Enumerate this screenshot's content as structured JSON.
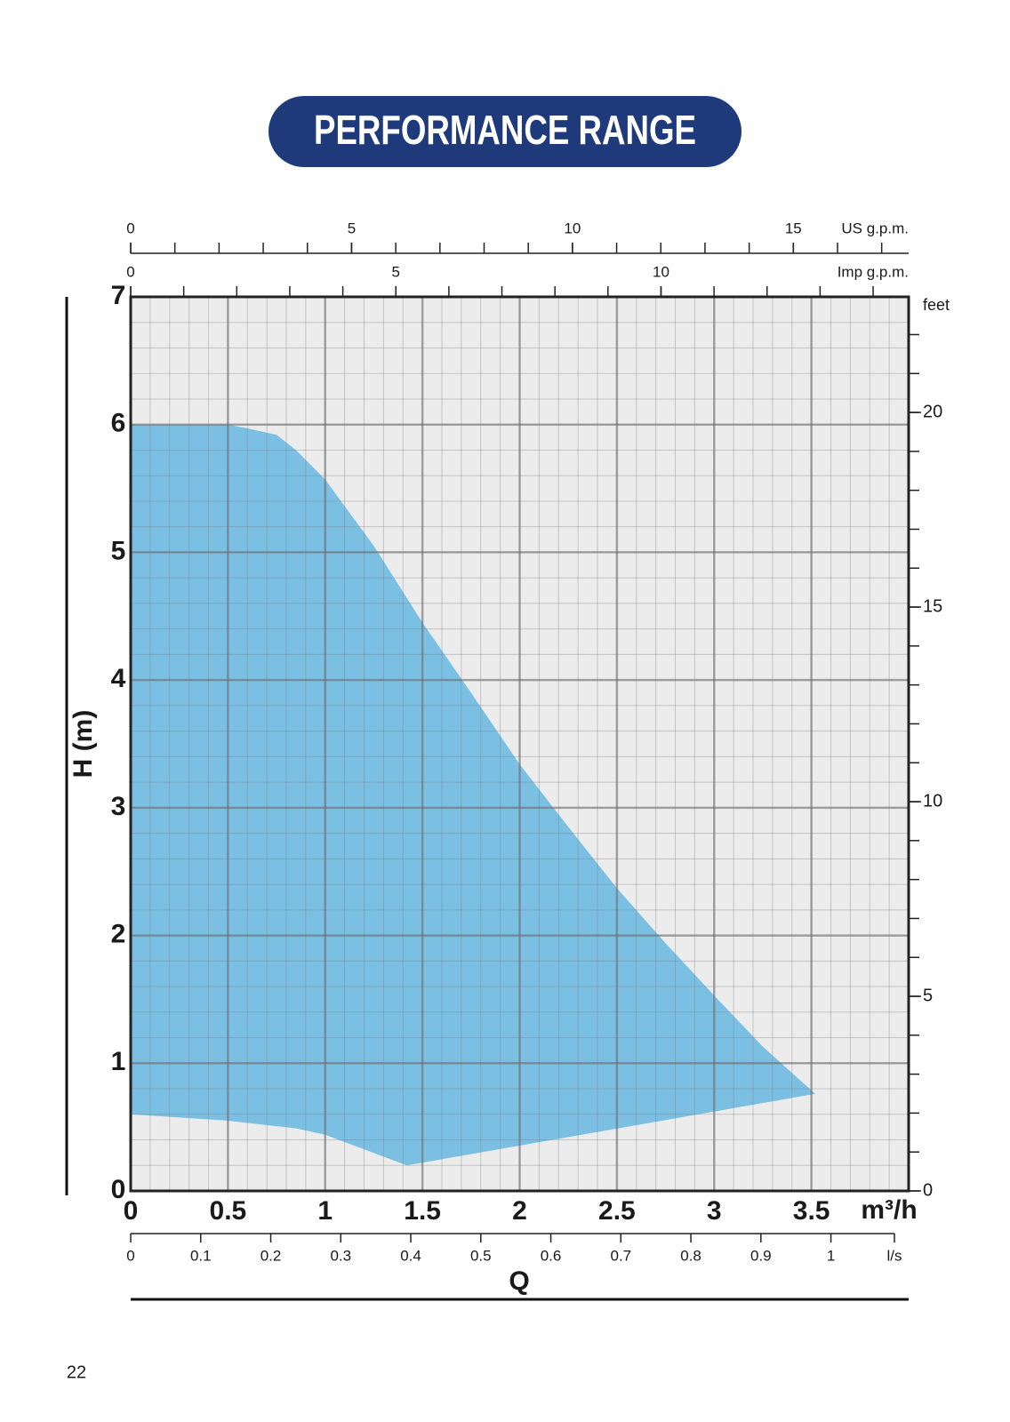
{
  "page_number": "22",
  "chart_data": {
    "type": "area",
    "title": "PERFORMANCE RANGE",
    "y_label": "H (m)",
    "x_label": "Q",
    "x_unit": "m³/h",
    "color": "#7bc0e3",
    "x": [
      0,
      0.25,
      0.5,
      0.6,
      0.75,
      0.85,
      1,
      1.25,
      1.5,
      1.75,
      2,
      2.25,
      2.5,
      2.75,
      3,
      3.25,
      3.52,
      1.42,
      1,
      0.85,
      0.5,
      0
    ],
    "values": [
      6,
      6,
      6,
      5.97,
      5.92,
      5.8,
      5.57,
      5.05,
      4.45,
      3.9,
      3.34,
      2.85,
      2.37,
      1.94,
      1.53,
      1.13,
      0.76,
      0.2,
      0.44,
      0.49,
      0.55,
      0.6
    ],
    "xlim": [
      0,
      4
    ],
    "ylim": [
      0,
      7
    ],
    "xticks": [
      0,
      0.5,
      1,
      1.5,
      2,
      2.5,
      3,
      3.5
    ],
    "yticks": [
      0,
      1,
      2,
      3,
      4,
      5,
      6,
      7
    ],
    "grid": true,
    "minor_grid": {
      "x": 0.1,
      "y": 0.2
    },
    "top_axes": [
      {
        "label": "US g.p.m.",
        "lim": [
          0,
          17.61
        ],
        "ticks": [
          0,
          5,
          10,
          15
        ],
        "minor": 1
      },
      {
        "label": "Imp g.p.m.",
        "lim": [
          0,
          14.67
        ],
        "ticks": [
          0,
          5,
          10
        ],
        "minor": 1
      }
    ],
    "bottom_axis": {
      "label": "l/s",
      "lim": [
        0,
        1.111
      ],
      "ticks": [
        0,
        0.1,
        0.2,
        0.3,
        0.4,
        0.5,
        0.6,
        0.7,
        0.8,
        0.9,
        1
      ]
    },
    "right_axis": {
      "label": "feet",
      "lim": [
        0,
        22.97
      ],
      "ticks": [
        0,
        5,
        10,
        15,
        20
      ],
      "minor": 1
    }
  }
}
